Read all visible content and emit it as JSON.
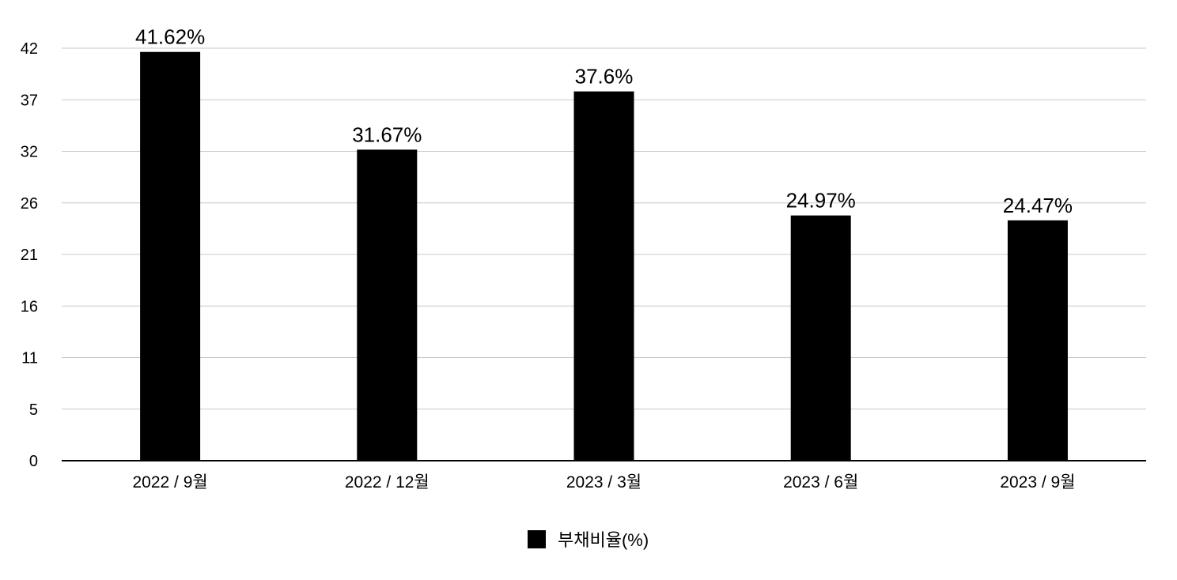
{
  "chart_data": {
    "type": "bar",
    "categories": [
      "2022 / 9월",
      "2022 / 12월",
      "2023 / 3월",
      "2023 / 6월",
      "2023 / 9월"
    ],
    "series": [
      {
        "name": "부채비율(%)",
        "values": [
          41.62,
          31.67,
          37.6,
          24.97,
          24.47
        ],
        "data_labels": [
          "41.62%",
          "31.67%",
          "37.6%",
          "24.97%",
          "24.47%"
        ],
        "color": "#000000"
      }
    ],
    "y_ticks": [
      "0",
      "5",
      "11",
      "16",
      "21",
      "26",
      "32",
      "37",
      "42"
    ],
    "ylim": [
      0,
      42
    ],
    "grid": true,
    "grid_color": "#c8c8c8",
    "legend_position": "bottom-center"
  }
}
